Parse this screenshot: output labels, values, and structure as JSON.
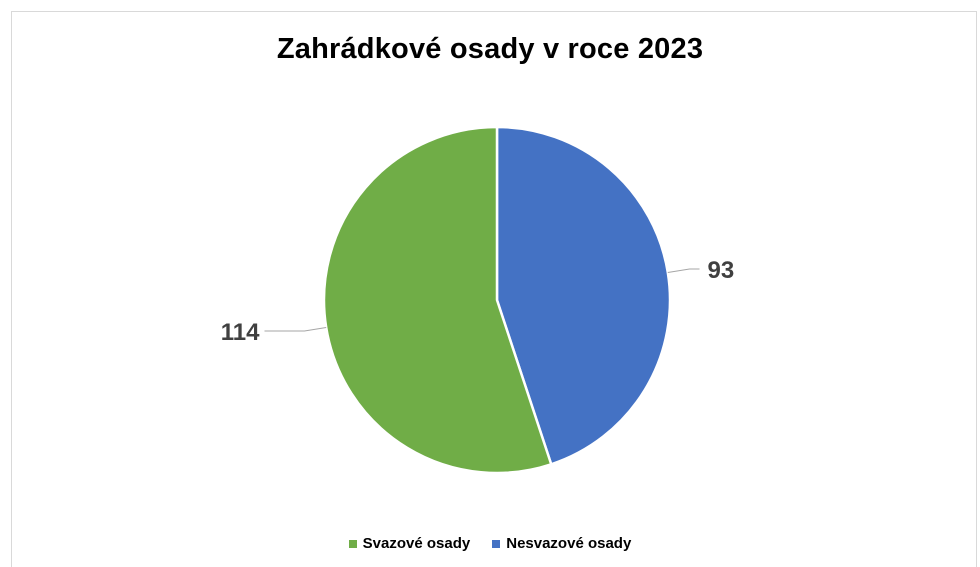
{
  "chart_data": {
    "type": "pie",
    "title": "Zahrádkové osady v roce 2023",
    "categories": [
      "Svazové osady",
      "Nesvazové osady"
    ],
    "values": [
      114,
      93
    ],
    "colors": [
      "#70AD47",
      "#4472C4"
    ],
    "legend_position": "bottom",
    "start": "top",
    "direction": "clockwise-from-second"
  }
}
